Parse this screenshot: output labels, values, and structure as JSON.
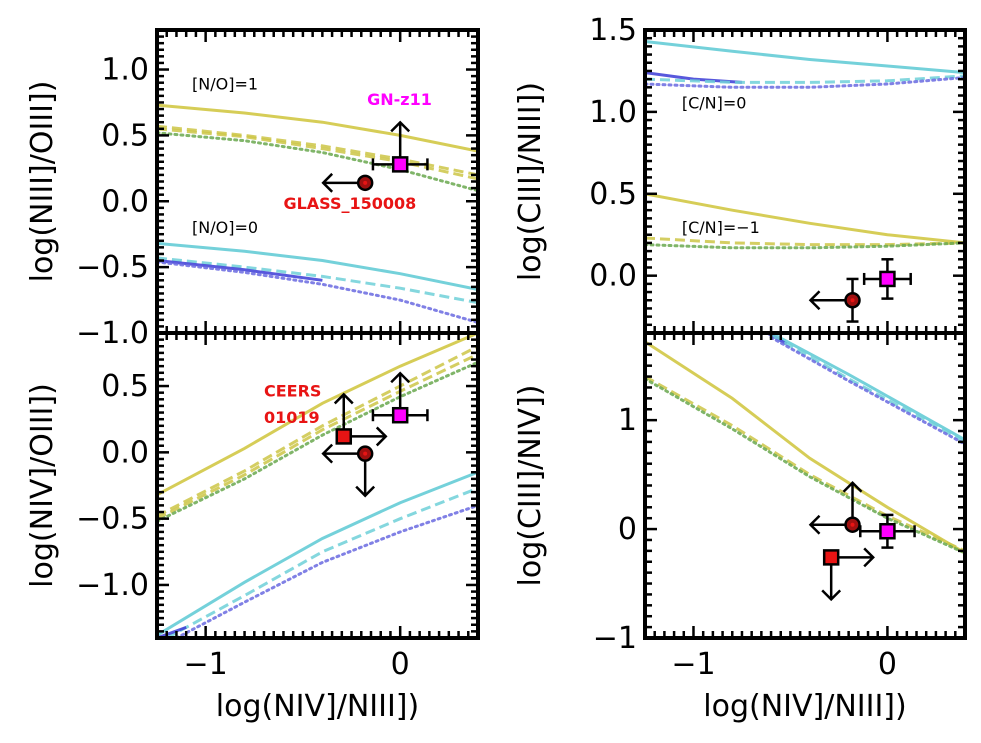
{
  "colors": {
    "yellow": "#cfc43a",
    "yellow_dashed": "#cdc647",
    "green_dotted": "#6aa84f",
    "cyan": "#5cc9d4",
    "cyan_dashed": "#6fd0d8",
    "blue": "#3b3bd6",
    "blue_dotted": "#6a6ae0",
    "magenta": "#ff00ff",
    "red": "#e81414",
    "dark_red": "#a01010"
  },
  "chart_data": [
    {
      "id": "p1",
      "type": "line",
      "ylabel": "log(NIII]/OIII])",
      "xlabel": "",
      "xlim": [
        -1.25,
        0.4
      ],
      "ylim": [
        -1.0,
        1.3
      ],
      "xticks": [],
      "yticks": [
        -1.0,
        -0.5,
        0.0,
        0.5,
        1.0
      ],
      "ytick_labels": [
        "−1.0",
        "−0.5",
        "0.0",
        "0.5",
        "1.0"
      ],
      "series": [
        {
          "name": "[N/O]=1 solid",
          "color": "yellow",
          "style": "solid",
          "x": [
            -1.25,
            -0.8,
            -0.4,
            0.0,
            0.4
          ],
          "y": [
            0.73,
            0.67,
            0.6,
            0.5,
            0.38
          ]
        },
        {
          "name": "[N/O]=1 dashed",
          "color": "yellow_dashed",
          "style": "dashed",
          "x": [
            -1.25,
            -0.8,
            -0.4,
            0.0,
            0.4
          ],
          "y": [
            0.57,
            0.5,
            0.42,
            0.32,
            0.2
          ]
        },
        {
          "name": "[N/O]=1 dashed 2",
          "color": "yellow_dashed",
          "style": "dashed",
          "x": [
            -1.25,
            -0.8,
            -0.4,
            0.0,
            0.4
          ],
          "y": [
            0.55,
            0.49,
            0.4,
            0.3,
            0.17
          ]
        },
        {
          "name": "[N/O]=1 dotted",
          "color": "green_dotted",
          "style": "dotted",
          "x": [
            -1.25,
            -0.8,
            -0.4,
            0.0,
            0.4
          ],
          "y": [
            0.52,
            0.46,
            0.37,
            0.24,
            0.08
          ]
        },
        {
          "name": "[N/O]=0 solid",
          "color": "cyan",
          "style": "solid",
          "x": [
            -1.25,
            -0.8,
            -0.4,
            0.0,
            0.4
          ],
          "y": [
            -0.32,
            -0.38,
            -0.45,
            -0.55,
            -0.67
          ]
        },
        {
          "name": "[N/O]=0 dashed",
          "color": "cyan_dashed",
          "style": "dashed",
          "x": [
            -1.25,
            -0.8,
            -0.4,
            0.0,
            0.4
          ],
          "y": [
            -0.43,
            -0.5,
            -0.57,
            -0.66,
            -0.77
          ]
        },
        {
          "name": "[N/O]=0 blue",
          "color": "blue",
          "style": "solid",
          "x": [
            -1.25,
            -0.8,
            -0.4
          ],
          "y": [
            -0.45,
            -0.52,
            -0.6
          ]
        },
        {
          "name": "[N/O]=0 dotted",
          "color": "blue_dotted",
          "style": "dotted",
          "x": [
            -1.25,
            -0.8,
            -0.4,
            0.0,
            0.4
          ],
          "y": [
            -0.46,
            -0.54,
            -0.63,
            -0.75,
            -0.92
          ]
        }
      ],
      "points": [
        {
          "name": "GN-z11",
          "shape": "square",
          "color": "magenta",
          "x": 0.0,
          "y": 0.28,
          "xerr": 0.14,
          "arrows": [
            "up"
          ]
        },
        {
          "name": "GLASS_150008",
          "shape": "circle",
          "color": "dark_red",
          "x": -0.18,
          "y": 0.14,
          "arrows": [
            "left"
          ]
        }
      ],
      "annotations": [
        {
          "text": "[N/O]=1",
          "x": -1.07,
          "y": 0.85,
          "color": "#000",
          "bold": false
        },
        {
          "text": "GN-z11",
          "x": -0.17,
          "y": 0.73,
          "color": "magenta",
          "bold": true
        },
        {
          "text": "GLASS_150008",
          "x": -0.6,
          "y": -0.06,
          "color": "red",
          "bold": true
        },
        {
          "text": "[N/O]=0",
          "x": -1.07,
          "y": -0.24,
          "color": "#000",
          "bold": false
        }
      ]
    },
    {
      "id": "p2",
      "type": "line",
      "ylabel": "log(NIV]/OIII])",
      "xlabel": "log(NIV]/NIII])",
      "xlim": [
        -1.25,
        0.4
      ],
      "ylim": [
        -1.4,
        0.9
      ],
      "xticks": [
        -1,
        0
      ],
      "xtick_labels": [
        "−1",
        "0"
      ],
      "yticks": [
        -1.0,
        -0.5,
        0.0,
        0.5
      ],
      "ytick_labels": [
        "−1.0",
        "−0.5",
        "0.0",
        "0.5"
      ],
      "series": [
        {
          "name": "upper solid",
          "color": "yellow",
          "style": "solid",
          "x": [
            -1.25,
            -0.8,
            -0.4,
            0.0,
            0.4
          ],
          "y": [
            -0.32,
            0.03,
            0.37,
            0.65,
            0.9
          ]
        },
        {
          "name": "upper dashed",
          "color": "yellow_dashed",
          "style": "dashed",
          "x": [
            -1.25,
            -0.8,
            -0.4,
            0.0,
            0.4
          ],
          "y": [
            -0.48,
            -0.14,
            0.2,
            0.5,
            0.8
          ]
        },
        {
          "name": "upper dashed 2",
          "color": "yellow_dashed",
          "style": "dashed",
          "x": [
            -1.25,
            -0.8,
            -0.4,
            0.0,
            0.4
          ],
          "y": [
            -0.5,
            -0.17,
            0.17,
            0.46,
            0.74
          ]
        },
        {
          "name": "upper dotted",
          "color": "green_dotted",
          "style": "dotted",
          "x": [
            -1.25,
            -0.8,
            -0.4,
            0.0,
            0.4
          ],
          "y": [
            -0.52,
            -0.2,
            0.13,
            0.42,
            0.68
          ]
        },
        {
          "name": "lower solid",
          "color": "cyan",
          "style": "solid",
          "x": [
            -1.25,
            -0.8,
            -0.4,
            0.0,
            0.4
          ],
          "y": [
            -1.38,
            -0.98,
            -0.65,
            -0.38,
            -0.15
          ]
        },
        {
          "name": "lower dashed",
          "color": "cyan_dashed",
          "style": "dashed",
          "x": [
            -1.2,
            -0.8,
            -0.4,
            0.0,
            0.4
          ],
          "y": [
            -1.4,
            -1.08,
            -0.75,
            -0.5,
            -0.27
          ]
        },
        {
          "name": "lower blue",
          "color": "blue",
          "style": "solid",
          "x": [
            -1.25,
            -1.1
          ],
          "y": [
            -1.4,
            -1.32
          ]
        },
        {
          "name": "lower dotted",
          "color": "blue_dotted",
          "style": "dotted",
          "x": [
            -1.15,
            -0.8,
            -0.4,
            0.0,
            0.4
          ],
          "y": [
            -1.4,
            -1.13,
            -0.83,
            -0.6,
            -0.4
          ]
        }
      ],
      "points": [
        {
          "name": "GN-z11",
          "shape": "square",
          "color": "magenta",
          "x": 0.0,
          "y": 0.28,
          "xerr": 0.14,
          "arrows": [
            "up"
          ]
        },
        {
          "name": "CEERS 01019",
          "shape": "square",
          "color": "red",
          "x": -0.29,
          "y": 0.12,
          "arrows": [
            "up",
            "right"
          ]
        },
        {
          "name": "GLASS_150008",
          "shape": "circle",
          "color": "dark_red",
          "x": -0.18,
          "y": -0.01,
          "arrows": [
            "left",
            "down"
          ]
        }
      ],
      "annotations": [
        {
          "text": "CEERS",
          "x": -0.7,
          "y": 0.42,
          "color": "red",
          "bold": true
        },
        {
          "text": "01019",
          "x": -0.7,
          "y": 0.22,
          "color": "red",
          "bold": true
        }
      ]
    },
    {
      "id": "p3",
      "type": "line",
      "ylabel": "log(CIII]/NIII])",
      "xlabel": "",
      "xlim": [
        -1.25,
        0.4
      ],
      "ylim": [
        -0.35,
        1.5
      ],
      "xticks": [],
      "yticks": [
        0.0,
        0.5,
        1.0,
        1.5
      ],
      "ytick_labels": [
        "0.0",
        "0.5",
        "1.0",
        "1.5"
      ],
      "series": [
        {
          "name": "[C/N]=0 solid",
          "color": "cyan",
          "style": "solid",
          "x": [
            -1.25,
            -0.8,
            -0.4,
            0.0,
            0.4
          ],
          "y": [
            1.43,
            1.37,
            1.32,
            1.28,
            1.24
          ]
        },
        {
          "name": "[C/N]=0 blue",
          "color": "blue",
          "style": "solid",
          "x": [
            -1.25,
            -1.0,
            -0.75
          ],
          "y": [
            1.24,
            1.2,
            1.18
          ]
        },
        {
          "name": "[C/N]=0 dashed",
          "color": "cyan_dashed",
          "style": "dashed",
          "x": [
            -1.25,
            -0.8,
            -0.4,
            0.0,
            0.4
          ],
          "y": [
            1.2,
            1.18,
            1.18,
            1.19,
            1.22
          ]
        },
        {
          "name": "[C/N]=0 dotted",
          "color": "blue_dotted",
          "style": "dotted",
          "x": [
            -1.25,
            -0.8,
            -0.4,
            0.0,
            0.4
          ],
          "y": [
            1.17,
            1.15,
            1.15,
            1.17,
            1.21
          ]
        },
        {
          "name": "[C/N]=-1 solid",
          "color": "yellow",
          "style": "solid",
          "x": [
            -1.25,
            -0.8,
            -0.4,
            0.0,
            0.4
          ],
          "y": [
            0.5,
            0.4,
            0.32,
            0.25,
            0.2
          ]
        },
        {
          "name": "[C/N]=-1 dashed",
          "color": "yellow_dashed",
          "style": "dashed",
          "x": [
            -1.25,
            -0.8,
            -0.4,
            0.0,
            0.4
          ],
          "y": [
            0.23,
            0.2,
            0.19,
            0.19,
            0.2
          ]
        },
        {
          "name": "[C/N]=-1 dotted",
          "color": "green_dotted",
          "style": "dotted",
          "x": [
            -1.25,
            -0.8,
            -0.4,
            0.0,
            0.4
          ],
          "y": [
            0.19,
            0.17,
            0.17,
            0.18,
            0.2
          ]
        }
      ],
      "points": [
        {
          "name": "GN-z11",
          "shape": "square",
          "color": "magenta",
          "x": 0.0,
          "y": -0.02,
          "yerr": 0.12,
          "xerr": 0.12,
          "arrows": []
        },
        {
          "name": "GLASS_150008",
          "shape": "circle",
          "color": "dark_red",
          "x": -0.18,
          "y": -0.15,
          "yerr": 0.13,
          "arrows": [
            "left"
          ]
        }
      ],
      "annotations": [
        {
          "text": "[C/N]=0",
          "x": -1.06,
          "y": 1.02,
          "color": "#000",
          "bold": false
        },
        {
          "text": "[C/N]=−1",
          "x": -1.06,
          "y": 0.26,
          "color": "#000",
          "bold": false
        }
      ]
    },
    {
      "id": "p4",
      "type": "line",
      "ylabel": "log(CIII]/NIV])",
      "xlabel": "log(NIV]/NIII])",
      "xlim": [
        -1.25,
        0.4
      ],
      "ylim": [
        -1.0,
        1.8
      ],
      "xticks": [
        -1,
        0
      ],
      "xtick_labels": [
        "−1",
        "0"
      ],
      "yticks": [
        -1,
        0,
        1
      ],
      "ytick_labels": [
        "−1",
        "0",
        "1"
      ],
      "series": [
        {
          "name": "upper solid",
          "color": "cyan",
          "style": "solid",
          "x": [
            -0.6,
            -0.2,
            0.4
          ],
          "y": [
            1.8,
            1.42,
            0.82
          ]
        },
        {
          "name": "upper blue",
          "color": "blue",
          "style": "solid",
          "x": [
            -0.62,
            -0.52
          ],
          "y": [
            1.8,
            1.7
          ]
        },
        {
          "name": "upper dashed",
          "color": "cyan_dashed",
          "style": "dashed",
          "x": [
            -0.6,
            -0.2,
            0.4
          ],
          "y": [
            1.78,
            1.38,
            0.8
          ]
        },
        {
          "name": "upper dotted",
          "color": "blue_dotted",
          "style": "dotted",
          "x": [
            -0.6,
            -0.2,
            0.4
          ],
          "y": [
            1.76,
            1.36,
            0.78
          ]
        },
        {
          "name": "lower solid",
          "color": "yellow",
          "style": "solid",
          "x": [
            -1.25,
            -0.8,
            -0.4,
            0.0,
            0.4
          ],
          "y": [
            1.72,
            1.2,
            0.65,
            0.2,
            -0.22
          ]
        },
        {
          "name": "lower dashed",
          "color": "yellow_dashed",
          "style": "dashed",
          "x": [
            -1.25,
            -0.8,
            -0.4,
            0.0,
            0.4
          ],
          "y": [
            1.4,
            0.95,
            0.5,
            0.12,
            -0.2
          ]
        },
        {
          "name": "lower dotted",
          "color": "green_dotted",
          "style": "dotted",
          "x": [
            -1.25,
            -0.8,
            -0.4,
            0.0,
            0.4
          ],
          "y": [
            1.38,
            0.92,
            0.48,
            0.1,
            -0.22
          ]
        }
      ],
      "points": [
        {
          "name": "GN-z11",
          "shape": "square",
          "color": "magenta",
          "x": 0.0,
          "y": -0.02,
          "xerr": 0.14,
          "yerr": 0.15,
          "arrows": []
        },
        {
          "name": "GLASS_150008",
          "shape": "circle",
          "color": "dark_red",
          "x": -0.18,
          "y": 0.04,
          "arrows": [
            "up",
            "left"
          ]
        },
        {
          "name": "CEERS 01019",
          "shape": "square",
          "color": "red",
          "x": -0.29,
          "y": -0.26,
          "arrows": [
            "down",
            "right"
          ]
        }
      ],
      "annotations": []
    }
  ]
}
